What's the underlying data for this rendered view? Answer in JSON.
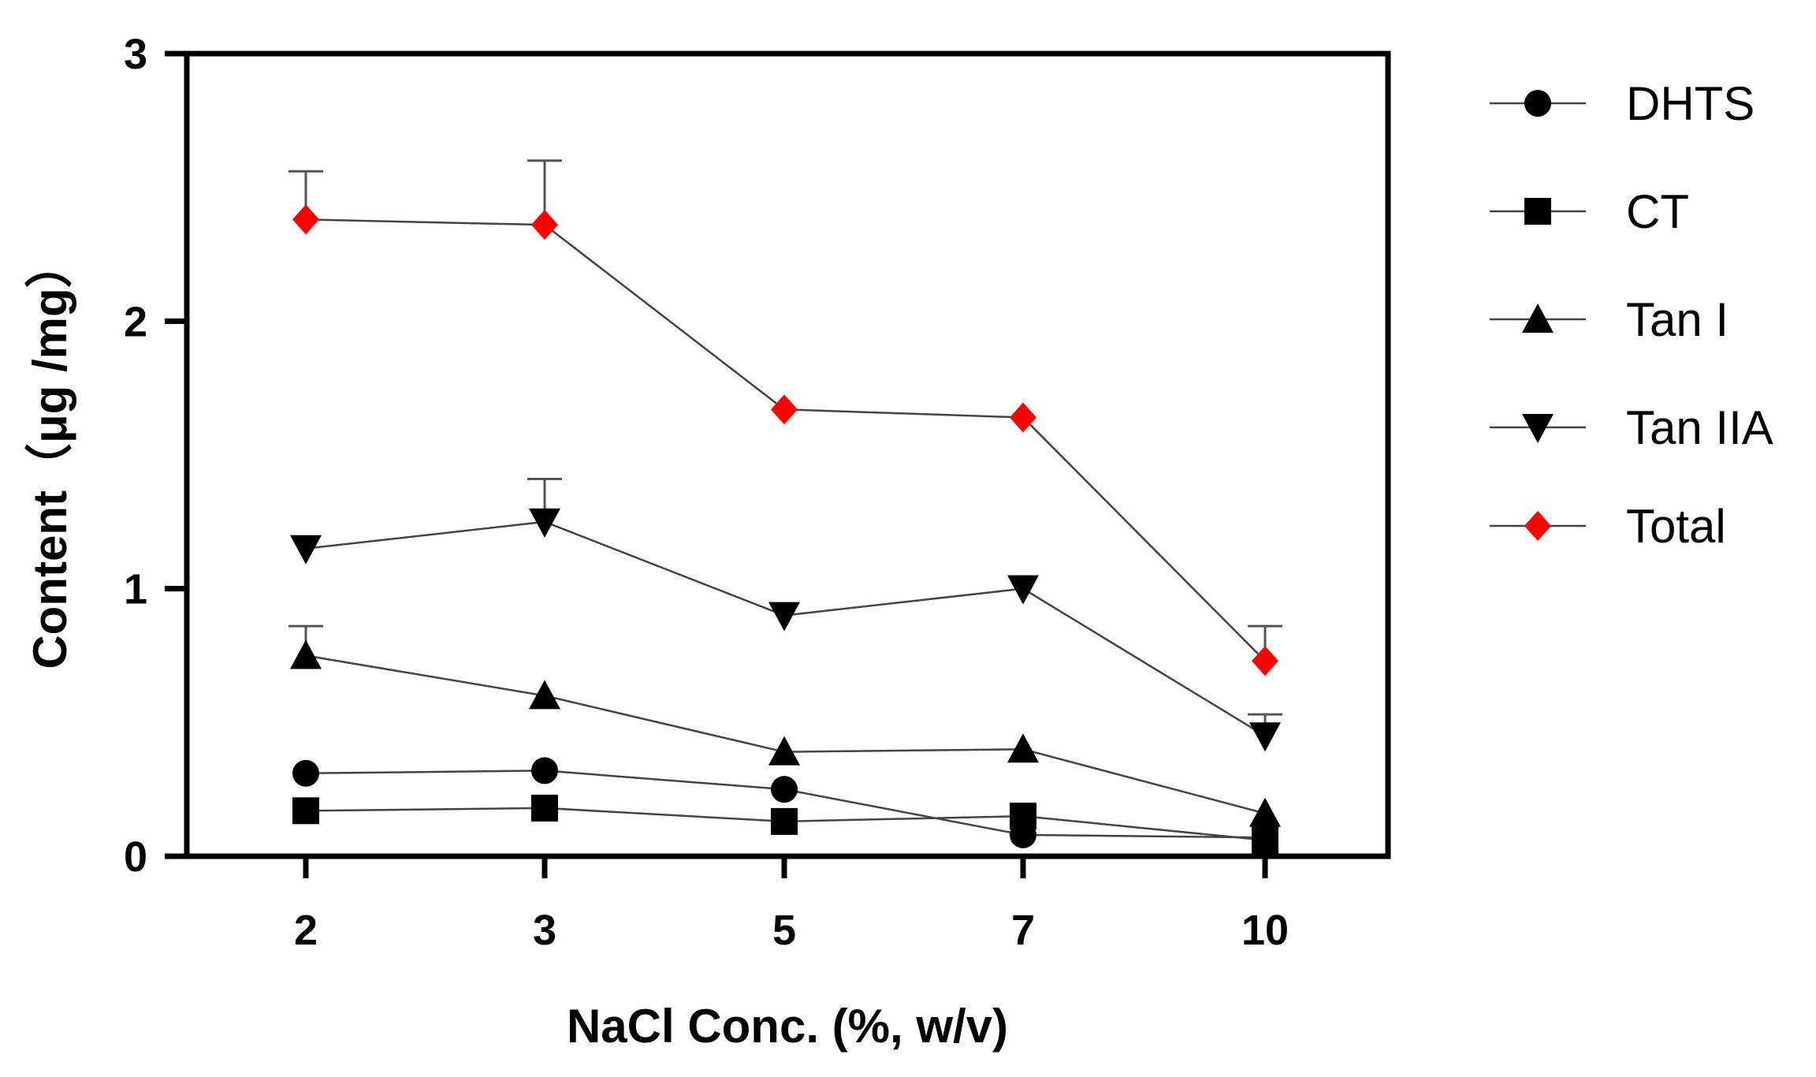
{
  "chart_data": {
    "type": "line",
    "xlabel": "NaCl Conc. (%, w/v)",
    "ylabel": "Content（μg /mg）",
    "categories": [
      "2",
      "3",
      "5",
      "7",
      "10"
    ],
    "ylim": [
      0,
      3
    ],
    "yticks": [
      "0",
      "1",
      "2",
      "3"
    ],
    "grid": false,
    "legend_position": "right",
    "series": [
      {
        "name": "DHTS",
        "marker": "circle",
        "color": "#000000",
        "values": [
          0.31,
          0.32,
          0.25,
          0.08,
          0.07
        ],
        "error": [
          0,
          0,
          0,
          0,
          0
        ]
      },
      {
        "name": "CT",
        "marker": "square",
        "color": "#000000",
        "values": [
          0.17,
          0.18,
          0.13,
          0.15,
          0.06
        ],
        "error": [
          0,
          0,
          0,
          0,
          0
        ]
      },
      {
        "name": "Tan I",
        "marker": "triangle-up",
        "color": "#000000",
        "values": [
          0.75,
          0.6,
          0.39,
          0.4,
          0.16
        ],
        "error": [
          0.11,
          0,
          0,
          0,
          0
        ]
      },
      {
        "name": "Tan IIA",
        "marker": "triangle-down",
        "color": "#000000",
        "values": [
          1.15,
          1.25,
          0.9,
          1.0,
          0.45
        ],
        "error": [
          0,
          0.16,
          0,
          0,
          0.08
        ]
      },
      {
        "name": "Total",
        "marker": "diamond",
        "color": "#ff0000",
        "values": [
          2.38,
          2.36,
          1.67,
          1.64,
          0.73
        ],
        "error": [
          0.18,
          0.24,
          0,
          0,
          0.13
        ]
      }
    ]
  }
}
